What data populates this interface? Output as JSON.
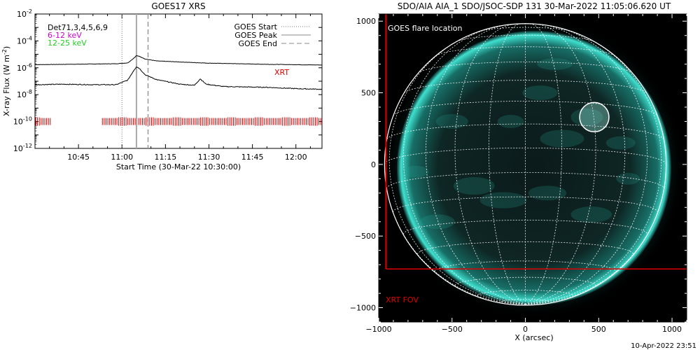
{
  "colors": {
    "red": "#e00000",
    "magenta": "#cc00cc",
    "green": "#22cc22",
    "teal": "#2fd6c4"
  },
  "footer": {
    "timestamp": "10-Apr-2022 23:51"
  },
  "chart_data": [
    {
      "type": "line",
      "title": "GOES17 XRS",
      "xlabel": "Start Time (30-Mar-22 10:30:00)",
      "ylabel": "X-ray Flux (W m^-2)",
      "ylabel_parts": {
        "main": "X-ray Flux (W m",
        "exp": "-2",
        "close": ")"
      },
      "yscale": "log",
      "xlim_minutes": [
        0,
        99
      ],
      "ylim": [
        1e-12,
        0.01
      ],
      "x_ticks": [
        {
          "minutes": 15,
          "label": "10:45"
        },
        {
          "minutes": 30,
          "label": "11:00"
        },
        {
          "minutes": 45,
          "label": "11:15"
        },
        {
          "minutes": 60,
          "label": "11:30"
        },
        {
          "minutes": 75,
          "label": "11:45"
        },
        {
          "minutes": 90,
          "label": "12:00"
        }
      ],
      "y_ticks": [
        {
          "exp": -2,
          "base": "10",
          "sup": "-2"
        },
        {
          "exp": -4,
          "base": "10",
          "sup": "-4"
        },
        {
          "exp": -6,
          "base": "10",
          "sup": "-6"
        },
        {
          "exp": -8,
          "base": "10",
          "sup": "-8"
        },
        {
          "exp": -10,
          "base": "10",
          "sup": "-10"
        },
        {
          "exp": -12,
          "base": "10",
          "sup": "-12"
        }
      ],
      "annotations": {
        "det": "Det71,3,4,5,6,9",
        "band_low": "6-12 keV",
        "band_high": "12-25 keV",
        "xrt": "XRT"
      },
      "legend": {
        "placement": "top-right",
        "entries": [
          {
            "label": "GOES Start",
            "style": "dotted",
            "minutes": 30.0
          },
          {
            "label": "GOES Peak",
            "style": "solid",
            "minutes": 35.0
          },
          {
            "label": "GOES End",
            "style": "dashed",
            "minutes": 39.0
          }
        ]
      },
      "series": [
        {
          "name": "12-25 keV",
          "color": "#000000",
          "points": [
            [
              0,
              1.7e-06
            ],
            [
              10,
              1.8e-06
            ],
            [
              20,
              1.9e-06
            ],
            [
              28,
              2e-06
            ],
            [
              32,
              2.3e-06
            ],
            [
              34,
              5e-06
            ],
            [
              35,
              8e-06
            ],
            [
              36,
              7e-06
            ],
            [
              38,
              4.5e-06
            ],
            [
              42,
              3.2e-06
            ],
            [
              50,
              2.7e-06
            ],
            [
              60,
              2.2e-06
            ],
            [
              70,
              2e-06
            ],
            [
              80,
              1.8e-06
            ],
            [
              90,
              1.7e-06
            ],
            [
              99,
              1.6e-06
            ]
          ]
        },
        {
          "name": "6-12 keV",
          "color": "#000000",
          "points": [
            [
              0,
              5.5e-08
            ],
            [
              10,
              6e-08
            ],
            [
              20,
              5.5e-08
            ],
            [
              28,
              5.5e-08
            ],
            [
              32,
              1.2e-07
            ],
            [
              34,
              6e-07
            ],
            [
              35,
              1.2e-06
            ],
            [
              36,
              9e-07
            ],
            [
              38,
              3e-07
            ],
            [
              42,
              1.3e-07
            ],
            [
              50,
              6e-08
            ],
            [
              55,
              5e-08
            ],
            [
              57,
              1.5e-07
            ],
            [
              59,
              6e-08
            ],
            [
              65,
              4e-08
            ],
            [
              80,
              3.5e-08
            ],
            [
              90,
              2.8e-08
            ],
            [
              99,
              2.5e-08
            ]
          ]
        }
      ],
      "coverage_intervals_minutes": [
        [
          0,
          5.5
        ],
        [
          23,
          99
        ]
      ]
    },
    {
      "type": "map",
      "title": "SDO/AIA AIA_1 SDO/JSOC-SDP 131 30-Mar-2022 11:05:06.620 UT",
      "xlabel": "X (arcsec)",
      "ylabel": "",
      "xlim": [
        -1000,
        1100
      ],
      "ylim": [
        -1100,
        1050
      ],
      "x_ticks": [
        -1000,
        -500,
        0,
        500,
        1000
      ],
      "y_ticks": [
        1000,
        500,
        0,
        -500,
        -1000
      ],
      "solar_radius_arcsec": 960,
      "annotations": {
        "flare_label": "GOES flare location",
        "fov_label": "XRT FOV"
      },
      "flare_location": {
        "x": 470,
        "y": 330,
        "radius": 100
      },
      "xrt_fov": {
        "x_left": -950,
        "y_bottom": -730
      }
    }
  ]
}
